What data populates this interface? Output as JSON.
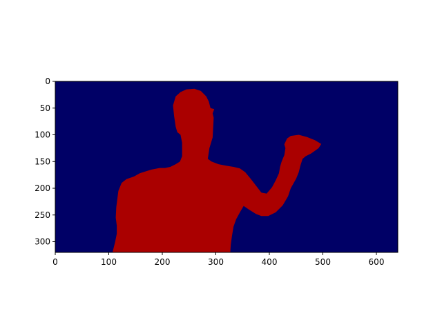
{
  "colors": {
    "background": "#000066",
    "foreground": "#aa0000",
    "axis": "#000000"
  },
  "chart_data": {
    "type": "heatmap",
    "title": "",
    "xlabel": "",
    "ylabel": "",
    "xlim": [
      0,
      640
    ],
    "ylim": [
      320,
      0
    ],
    "y_axis_inverted": true,
    "grid": false,
    "colormap": "jet",
    "description_of_values": "binary segmentation mask: background class rendered dark blue, person class rendered dark red",
    "x_ticks": [
      0,
      100,
      200,
      300,
      400,
      500,
      600
    ],
    "x_tick_labels": [
      "0",
      "100",
      "200",
      "300",
      "400",
      "500",
      "600"
    ],
    "y_ticks": [
      0,
      50,
      100,
      150,
      200,
      250,
      300
    ],
    "y_tick_labels": [
      "0",
      "50",
      "100",
      "150",
      "200",
      "250",
      "300"
    ],
    "mask_region": {
      "class": "person",
      "outline_xy": [
        [
          107,
          320
        ],
        [
          112,
          300
        ],
        [
          115,
          285
        ],
        [
          115,
          270
        ],
        [
          113,
          255
        ],
        [
          114,
          235
        ],
        [
          118,
          205
        ],
        [
          124,
          190
        ],
        [
          133,
          183
        ],
        [
          147,
          178
        ],
        [
          158,
          172
        ],
        [
          170,
          168
        ],
        [
          180,
          165
        ],
        [
          195,
          162
        ],
        [
          205,
          162
        ],
        [
          215,
          160
        ],
        [
          225,
          155
        ],
        [
          233,
          150
        ],
        [
          237,
          140
        ],
        [
          237,
          115
        ],
        [
          234,
          100
        ],
        [
          228,
          95
        ],
        [
          225,
          85
        ],
        [
          222,
          65
        ],
        [
          220,
          45
        ],
        [
          225,
          28
        ],
        [
          234,
          20
        ],
        [
          245,
          15
        ],
        [
          260,
          14
        ],
        [
          272,
          18
        ],
        [
          282,
          28
        ],
        [
          287,
          38
        ],
        [
          290,
          50
        ],
        [
          297,
          52
        ],
        [
          294,
          60
        ],
        [
          296,
          68
        ],
        [
          295,
          88
        ],
        [
          294,
          105
        ],
        [
          288,
          125
        ],
        [
          285,
          145
        ],
        [
          292,
          150
        ],
        [
          305,
          155
        ],
        [
          320,
          158
        ],
        [
          333,
          160
        ],
        [
          345,
          163
        ],
        [
          355,
          170
        ],
        [
          365,
          182
        ],
        [
          375,
          195
        ],
        [
          385,
          208
        ],
        [
          395,
          210
        ],
        [
          405,
          198
        ],
        [
          412,
          185
        ],
        [
          418,
          172
        ],
        [
          420,
          160
        ],
        [
          423,
          150
        ],
        [
          428,
          138
        ],
        [
          430,
          125
        ],
        [
          428,
          118
        ],
        [
          433,
          107
        ],
        [
          440,
          102
        ],
        [
          455,
          100
        ],
        [
          470,
          104
        ],
        [
          485,
          110
        ],
        [
          497,
          117
        ],
        [
          492,
          125
        ],
        [
          485,
          130
        ],
        [
          478,
          135
        ],
        [
          468,
          140
        ],
        [
          462,
          145
        ],
        [
          458,
          158
        ],
        [
          455,
          170
        ],
        [
          450,
          182
        ],
        [
          440,
          200
        ],
        [
          435,
          215
        ],
        [
          425,
          232
        ],
        [
          412,
          245
        ],
        [
          398,
          252
        ],
        [
          385,
          252
        ],
        [
          375,
          248
        ],
        [
          362,
          240
        ],
        [
          352,
          233
        ],
        [
          345,
          245
        ],
        [
          338,
          258
        ],
        [
          333,
          272
        ],
        [
          330,
          290
        ],
        [
          328,
          305
        ],
        [
          327,
          320
        ]
      ]
    }
  }
}
